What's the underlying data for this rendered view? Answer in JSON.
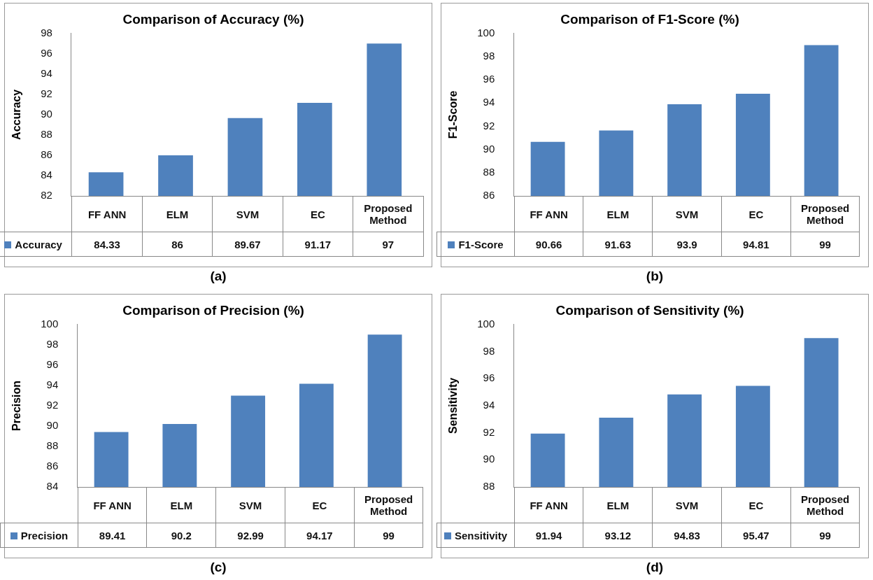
{
  "chart_data": [
    {
      "type": "bar",
      "title": "Comparison of Accuracy (%)",
      "ylabel": "Accuracy",
      "categories": [
        "FF ANN",
        "ELM",
        "SVM",
        "EC",
        "Proposed Method"
      ],
      "series": [
        {
          "name": "Accuracy",
          "color": "#4f81bd",
          "values": [
            84.33,
            86,
            89.67,
            91.17,
            97
          ]
        }
      ],
      "ylim": [
        82,
        98
      ],
      "yticks": [
        82,
        84,
        86,
        88,
        90,
        92,
        94,
        96,
        98
      ],
      "grid": false,
      "legend": "bottom",
      "data_labels": true,
      "annotations": [
        "(a)"
      ]
    },
    {
      "type": "bar",
      "title": "Comparison of F1-Score (%)",
      "ylabel": "F1-Score",
      "categories": [
        "FF ANN",
        "ELM",
        "SVM",
        "EC",
        "Proposed Method"
      ],
      "series": [
        {
          "name": "F1-Score",
          "color": "#4f81bd",
          "values": [
            90.66,
            91.63,
            93.9,
            94.81,
            99
          ]
        }
      ],
      "ylim": [
        86,
        100
      ],
      "yticks": [
        86,
        88,
        90,
        92,
        94,
        96,
        98,
        100
      ],
      "grid": false,
      "legend": "bottom",
      "data_labels": true,
      "annotations": [
        "(b)"
      ]
    },
    {
      "type": "bar",
      "title": "Comparison of Precision (%)",
      "ylabel": "Precision",
      "categories": [
        "FF ANN",
        "ELM",
        "SVM",
        "EC",
        "Proposed Method"
      ],
      "series": [
        {
          "name": "Precision",
          "color": "#4f81bd",
          "values": [
            89.41,
            90.2,
            92.99,
            94.17,
            99
          ]
        }
      ],
      "ylim": [
        84,
        100
      ],
      "yticks": [
        84,
        86,
        88,
        90,
        92,
        94,
        96,
        98,
        100
      ],
      "grid": false,
      "legend": "bottom",
      "data_labels": true,
      "annotations": [
        "(c)"
      ]
    },
    {
      "type": "bar",
      "title": "Comparison of Sensitivity (%)",
      "ylabel": "Sensitivity",
      "categories": [
        "FF ANN",
        "ELM",
        "SVM",
        "EC",
        "Proposed Method"
      ],
      "series": [
        {
          "name": "Sensitivity",
          "color": "#4f81bd",
          "values": [
            91.94,
            93.12,
            94.83,
            95.47,
            99
          ]
        }
      ],
      "ylim": [
        88,
        100
      ],
      "yticks": [
        88,
        90,
        92,
        94,
        96,
        98,
        100
      ],
      "grid": false,
      "legend": "bottom",
      "data_labels": true,
      "annotations": [
        "(d)"
      ]
    }
  ]
}
